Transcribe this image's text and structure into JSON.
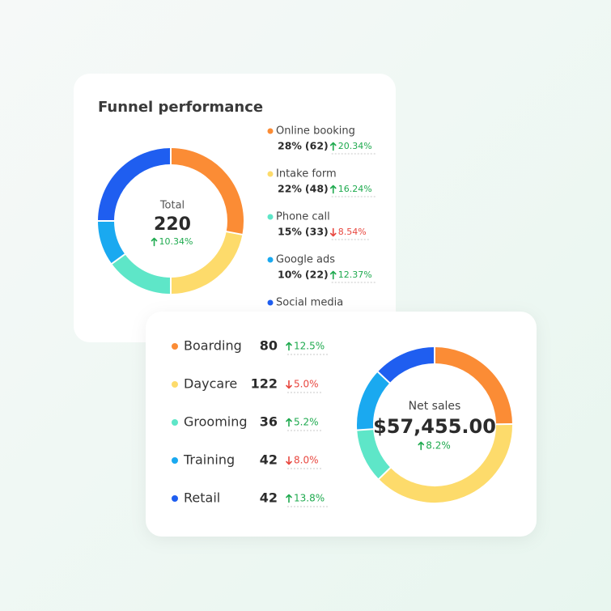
{
  "chart_data": [
    {
      "type": "donut",
      "title": "Funnel performance",
      "center_label": "Total",
      "total": 220,
      "total_change": {
        "value": 10.34,
        "label": "10.34%"
      },
      "categories": [
        "Online booking",
        "Intake form",
        "Phone call",
        "Google ads",
        "Social media"
      ],
      "values": [
        28,
        22,
        15,
        10,
        25
      ],
      "value_labels": [
        "28%",
        "22%",
        "15%",
        "10%",
        null
      ],
      "counts": [
        62,
        48,
        33,
        22,
        null
      ],
      "count_labels": [
        "(62)",
        "(48)",
        "(33)",
        "(22)",
        null
      ],
      "changes": [
        {
          "value": 20.34,
          "label": "20.34%"
        },
        {
          "value": 16.24,
          "label": "16.24%"
        },
        {
          "value": -8.54,
          "label": "8.54%"
        },
        {
          "value": 12.37,
          "label": "12.37%"
        },
        null
      ],
      "colors": [
        "#fb8c35",
        "#fddb6b",
        "#5ee6c8",
        "#1aa9f0",
        "#1f5ef0"
      ]
    },
    {
      "type": "donut",
      "center_label": "Net sales",
      "total": {
        "value": 57455,
        "label": "$57,455.00"
      },
      "total_change": {
        "value": 8.2,
        "label": "8.2%"
      },
      "categories": [
        "Boarding",
        "Daycare",
        "Grooming",
        "Training",
        "Retail"
      ],
      "values": [
        80,
        122,
        36,
        42,
        42
      ],
      "changes": [
        {
          "value": 12.5,
          "label": "12.5%"
        },
        {
          "value": -5.0,
          "label": "5.0%"
        },
        {
          "value": 5.2,
          "label": "5.2%"
        },
        {
          "value": -8.0,
          "label": "8.0%"
        },
        {
          "value": 13.8,
          "label": "13.8%"
        }
      ],
      "colors": [
        "#fb8c35",
        "#fddb6b",
        "#5ee6c8",
        "#1aa9f0",
        "#1f5ef0"
      ]
    }
  ]
}
